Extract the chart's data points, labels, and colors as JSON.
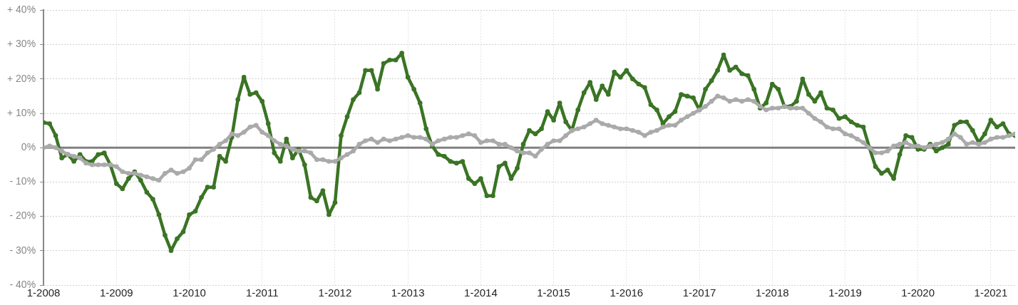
{
  "chart_data": {
    "type": "line",
    "x": [
      "2008-01",
      "2008-02",
      "2008-03",
      "2008-04",
      "2008-05",
      "2008-06",
      "2008-07",
      "2008-08",
      "2008-09",
      "2008-10",
      "2008-11",
      "2008-12",
      "2009-01",
      "2009-02",
      "2009-03",
      "2009-04",
      "2009-05",
      "2009-06",
      "2009-07",
      "2009-08",
      "2009-09",
      "2009-10",
      "2009-11",
      "2009-12",
      "2010-01",
      "2010-02",
      "2010-03",
      "2010-04",
      "2010-05",
      "2010-06",
      "2010-07",
      "2010-08",
      "2010-09",
      "2010-10",
      "2010-11",
      "2010-12",
      "2011-01",
      "2011-02",
      "2011-03",
      "2011-04",
      "2011-05",
      "2011-06",
      "2011-07",
      "2011-08",
      "2011-09",
      "2011-10",
      "2011-11",
      "2011-12",
      "2012-01",
      "2012-02",
      "2012-03",
      "2012-04",
      "2012-05",
      "2012-06",
      "2012-07",
      "2012-08",
      "2012-09",
      "2012-10",
      "2012-11",
      "2012-12",
      "2013-01",
      "2013-02",
      "2013-03",
      "2013-04",
      "2013-05",
      "2013-06",
      "2013-07",
      "2013-08",
      "2013-09",
      "2013-10",
      "2013-11",
      "2013-12",
      "2014-01",
      "2014-02",
      "2014-03",
      "2014-04",
      "2014-05",
      "2014-06",
      "2014-07",
      "2014-08",
      "2014-09",
      "2014-10",
      "2014-11",
      "2014-12",
      "2015-01",
      "2015-02",
      "2015-03",
      "2015-04",
      "2015-05",
      "2015-06",
      "2015-07",
      "2015-08",
      "2015-09",
      "2015-10",
      "2015-11",
      "2015-12",
      "2016-01",
      "2016-02",
      "2016-03",
      "2016-04",
      "2016-05",
      "2016-06",
      "2016-07",
      "2016-08",
      "2016-09",
      "2016-10",
      "2016-11",
      "2016-12",
      "2017-01",
      "2017-02",
      "2017-03",
      "2017-04",
      "2017-05",
      "2017-06",
      "2017-07",
      "2017-08",
      "2017-09",
      "2017-10",
      "2017-11",
      "2017-12",
      "2018-01",
      "2018-02",
      "2018-03",
      "2018-04",
      "2018-05",
      "2018-06",
      "2018-07",
      "2018-08",
      "2018-09",
      "2018-10",
      "2018-11",
      "2018-12",
      "2019-01",
      "2019-02",
      "2019-03",
      "2019-04",
      "2019-05",
      "2019-06",
      "2019-07",
      "2019-08",
      "2019-09",
      "2019-10",
      "2019-11",
      "2019-12",
      "2020-01",
      "2020-02",
      "2020-03",
      "2020-04",
      "2020-05",
      "2020-06",
      "2020-07",
      "2020-08",
      "2020-09",
      "2020-10",
      "2020-11",
      "2020-12",
      "2021-01",
      "2021-02",
      "2021-03",
      "2021-04",
      "2021-05"
    ],
    "series": [
      {
        "color": "#aaaaaa",
        "values": [
          0,
          0.5,
          0,
          -1,
          -2,
          -2.5,
          -3,
          -4.5,
          -5,
          -5,
          -5,
          -5,
          -5.5,
          -7,
          -7.5,
          -7.5,
          -8,
          -8.5,
          -9,
          -9.5,
          -7.5,
          -6.5,
          -7.5,
          -7,
          -6,
          -3.5,
          -3.5,
          -1.5,
          -0.5,
          1,
          2,
          4,
          3.5,
          4.5,
          6,
          6.5,
          4.5,
          3.5,
          2,
          1,
          0.5,
          -0.5,
          -1,
          -1,
          -1.5,
          -3.5,
          -3.5,
          -4,
          -4,
          -3,
          -2,
          -1,
          1,
          2,
          2.5,
          1.5,
          2.5,
          2,
          2.5,
          3,
          3.5,
          3,
          3,
          2.5,
          1,
          2,
          2.5,
          3,
          3,
          3.5,
          4,
          3.5,
          1.5,
          2,
          2,
          1,
          1,
          0,
          -1,
          -1.5,
          -1.5,
          -2.5,
          -0.5,
          1,
          2,
          2,
          3.5,
          5,
          5.5,
          6,
          7,
          8,
          7,
          6.5,
          6,
          5.5,
          5.5,
          5,
          4.5,
          3.5,
          4.5,
          5,
          6,
          6.5,
          6.5,
          8,
          9,
          10,
          11,
          12,
          13.5,
          15,
          14.5,
          13.5,
          14,
          13.5,
          14,
          13.5,
          12,
          11,
          11.5,
          11.5,
          12,
          11.5,
          11.5,
          11.5,
          10,
          8.5,
          7.5,
          6,
          5.5,
          5.5,
          4,
          3.5,
          2.5,
          1.5,
          0,
          -1.5,
          -1.5,
          -1,
          0.5,
          1,
          1.5,
          0.5,
          0.5,
          0,
          0.5,
          1,
          1.5,
          2.5,
          4,
          3,
          1,
          1.5,
          1,
          1.5,
          2.5,
          3,
          3,
          3.5,
          4
        ]
      },
      {
        "color": "#3a7424",
        "values": [
          7.3,
          7,
          3.5,
          -3,
          -2,
          -4,
          -2,
          -4,
          -4,
          -2,
          -1.5,
          -5,
          -10.5,
          -12,
          -9,
          -7,
          -9.5,
          -13,
          -15,
          -19.5,
          -25.5,
          -30,
          -26.5,
          -24.5,
          -19.5,
          -18.5,
          -14.5,
          -11.5,
          -11.5,
          -2.5,
          -4,
          3,
          14,
          20.5,
          15.5,
          16,
          13.5,
          7,
          -1.5,
          -4,
          2.5,
          -3,
          -0.5,
          -5,
          -14.5,
          -15.5,
          -12.5,
          -19.5,
          -16,
          3.5,
          9,
          14,
          16,
          22.5,
          22.5,
          17,
          24.5,
          25.5,
          25.5,
          27.5,
          20.5,
          17,
          13,
          5.5,
          0.5,
          -2,
          -2.5,
          -4,
          -4.5,
          -4,
          -9,
          -10.5,
          -9,
          -14,
          -14,
          -5.5,
          -4.5,
          -9,
          -6,
          1,
          5,
          4,
          5.5,
          10.5,
          8,
          13,
          7.5,
          5,
          11,
          16,
          19,
          14,
          18,
          15.5,
          22,
          20.5,
          22.5,
          20,
          18.5,
          17.5,
          12.5,
          11,
          7,
          9,
          10.5,
          15.5,
          15,
          14.5,
          11,
          17,
          19.5,
          22.5,
          27,
          22.5,
          23.5,
          21.5,
          21,
          17,
          11.5,
          13,
          18.5,
          17,
          12,
          12,
          13.5,
          20,
          15.5,
          13.5,
          16,
          11.5,
          11,
          8.5,
          9,
          7.5,
          6.5,
          6,
          0,
          -5.5,
          -7.5,
          -6.5,
          -9,
          -2,
          3.5,
          3,
          -0.5,
          -0.5,
          1,
          -1,
          0,
          1,
          6.5,
          7.5,
          7.5,
          5,
          1.5,
          4,
          8,
          6,
          7,
          4,
          3.5
        ]
      }
    ],
    "xlim": [
      "2008-01",
      "2021-05"
    ],
    "xticks": [
      {
        "value": "2008-01",
        "label": "1-2008"
      },
      {
        "value": "2009-01",
        "label": "1-2009"
      },
      {
        "value": "2010-01",
        "label": "1-2010"
      },
      {
        "value": "2011-01",
        "label": "1-2011"
      },
      {
        "value": "2012-01",
        "label": "1-2012"
      },
      {
        "value": "2013-01",
        "label": "1-2013"
      },
      {
        "value": "2014-01",
        "label": "1-2014"
      },
      {
        "value": "2015-01",
        "label": "1-2015"
      },
      {
        "value": "2016-01",
        "label": "1-2016"
      },
      {
        "value": "2017-01",
        "label": "1-2017"
      },
      {
        "value": "2018-01",
        "label": "1-2018"
      },
      {
        "value": "2019-01",
        "label": "1-2019"
      },
      {
        "value": "2020-01",
        "label": "1-2020"
      },
      {
        "value": "2021-01",
        "label": "1-2021"
      }
    ],
    "ylim": [
      -40,
      40
    ],
    "yticks": [
      {
        "value": -40,
        "label": "- 40%"
      },
      {
        "value": -30,
        "label": "- 30%"
      },
      {
        "value": -20,
        "label": "- 20%"
      },
      {
        "value": -10,
        "label": "- 10%"
      },
      {
        "value": 0,
        "label": "0%"
      },
      {
        "value": 10,
        "label": "+ 10%"
      },
      {
        "value": 20,
        "label": "+ 20%"
      },
      {
        "value": 30,
        "label": "+ 30%"
      },
      {
        "value": 40,
        "label": "+ 40%"
      }
    ],
    "ref_lines": [
      {
        "axis": "y",
        "value": 0,
        "color": "#808080"
      }
    ],
    "grid": true,
    "legend": false,
    "marker": "circle",
    "line_style": "solid"
  }
}
